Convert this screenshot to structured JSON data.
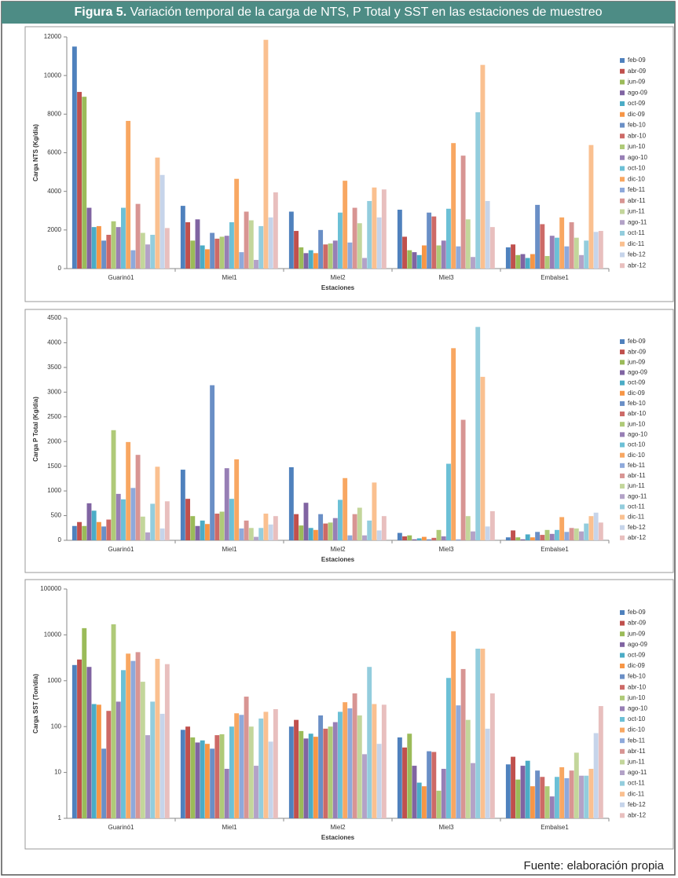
{
  "figure": {
    "label": "Figura 5.",
    "title": "Variación temporal de la carga de NTS, P Total y SST en las estaciones de muestreo"
  },
  "source": "Fuente: elaboración propia",
  "chart_data": [
    {
      "type": "bar",
      "ylabel": "Carga NTS (Kg/día)",
      "xlabel": "Estaciones",
      "legend": "right",
      "categories": [
        "Guarinó1",
        "Miel1",
        "Miel2",
        "Miel3",
        "Embalse1"
      ],
      "ylim": [
        0,
        12000
      ],
      "yticks": [
        0,
        2000,
        4000,
        6000,
        8000,
        10000,
        12000
      ],
      "series": [
        {
          "name": "feb-09",
          "color": "#4F81BD",
          "values": [
            11500,
            3250,
            2950,
            3050,
            1100
          ]
        },
        {
          "name": "abr-09",
          "color": "#C0504D",
          "values": [
            9150,
            2400,
            1950,
            1650,
            1250
          ]
        },
        {
          "name": "jun-09",
          "color": "#9BBB59",
          "values": [
            8900,
            1450,
            1100,
            950,
            700
          ]
        },
        {
          "name": "ago-09",
          "color": "#8064A2",
          "values": [
            3150,
            2550,
            800,
            850,
            750
          ]
        },
        {
          "name": "oct-09",
          "color": "#4BACC6",
          "values": [
            2150,
            1200,
            950,
            700,
            550
          ]
        },
        {
          "name": "dic-09",
          "color": "#F79646",
          "values": [
            2200,
            1000,
            800,
            1200,
            750
          ]
        },
        {
          "name": "feb-10",
          "color": "#6A8FC6",
          "values": [
            1450,
            1850,
            2000,
            2900,
            3300
          ]
        },
        {
          "name": "abr-10",
          "color": "#CD6A67",
          "values": [
            1750,
            1550,
            1250,
            2700,
            2300
          ]
        },
        {
          "name": "jun-10",
          "color": "#AFCA78",
          "values": [
            2450,
            1650,
            1300,
            1200,
            650
          ]
        },
        {
          "name": "ago-10",
          "color": "#977FB5",
          "values": [
            2150,
            1700,
            1450,
            1450,
            1700
          ]
        },
        {
          "name": "oct-10",
          "color": "#6CC0D6",
          "values": [
            3150,
            2400,
            2900,
            3100,
            1600
          ]
        },
        {
          "name": "dic-10",
          "color": "#F8A762",
          "values": [
            7650,
            4650,
            4550,
            6500,
            2650
          ]
        },
        {
          "name": "feb-11",
          "color": "#8EA9DB",
          "values": [
            950,
            850,
            1350,
            1150,
            1150
          ]
        },
        {
          "name": "abr-11",
          "color": "#D89593",
          "values": [
            3350,
            2950,
            3150,
            5850,
            2400
          ]
        },
        {
          "name": "jun-11",
          "color": "#C3D69B",
          "values": [
            1850,
            2500,
            2350,
            2550,
            1600
          ]
        },
        {
          "name": "ago-11",
          "color": "#B3A2C7",
          "values": [
            1250,
            450,
            550,
            600,
            700
          ]
        },
        {
          "name": "oct-11",
          "color": "#93CDDD",
          "values": [
            1750,
            2200,
            3500,
            8100,
            1450
          ]
        },
        {
          "name": "dic-11",
          "color": "#FAC090",
          "values": [
            5750,
            11850,
            4200,
            10550,
            6400
          ]
        },
        {
          "name": "feb-12",
          "color": "#C6D4EA",
          "values": [
            4850,
            2650,
            2650,
            3500,
            1900
          ]
        },
        {
          "name": "abr-12",
          "color": "#E8BFBE",
          "values": [
            2100,
            3950,
            4100,
            2150,
            1950
          ]
        }
      ]
    },
    {
      "type": "bar",
      "ylabel": "Carga P Total (Kg/día)",
      "xlabel": "Estaciones",
      "legend": "right",
      "categories": [
        "Guarinó1",
        "Miel1",
        "Miel2",
        "Miel3",
        "Embalse1"
      ],
      "ylim": [
        0,
        4500
      ],
      "yticks": [
        0,
        500,
        1000,
        1500,
        2000,
        2500,
        3000,
        3500,
        4000,
        4500
      ],
      "series": [
        {
          "name": "feb-09",
          "color": "#4F81BD",
          "values": [
            290,
            1430,
            1480,
            150,
            60
          ]
        },
        {
          "name": "abr-09",
          "color": "#C0504D",
          "values": [
            370,
            840,
            530,
            80,
            200
          ]
        },
        {
          "name": "jun-09",
          "color": "#9BBB59",
          "values": [
            290,
            490,
            300,
            100,
            60
          ]
        },
        {
          "name": "ago-09",
          "color": "#8064A2",
          "values": [
            750,
            290,
            760,
            20,
            20
          ]
        },
        {
          "name": "oct-09",
          "color": "#4BACC6",
          "values": [
            600,
            400,
            250,
            40,
            120
          ]
        },
        {
          "name": "dic-09",
          "color": "#F79646",
          "values": [
            370,
            330,
            210,
            70,
            60
          ]
        },
        {
          "name": "feb-10",
          "color": "#6A8FC6",
          "values": [
            280,
            3140,
            530,
            20,
            170
          ]
        },
        {
          "name": "abr-10",
          "color": "#CD6A67",
          "values": [
            420,
            540,
            340,
            50,
            110
          ]
        },
        {
          "name": "jun-10",
          "color": "#AFCA78",
          "values": [
            2230,
            580,
            360,
            210,
            210
          ]
        },
        {
          "name": "ago-10",
          "color": "#977FB5",
          "values": [
            940,
            1460,
            450,
            80,
            130
          ]
        },
        {
          "name": "oct-10",
          "color": "#6CC0D6",
          "values": [
            830,
            840,
            820,
            1550,
            210
          ]
        },
        {
          "name": "dic-10",
          "color": "#F8A762",
          "values": [
            1990,
            1640,
            1260,
            3890,
            470
          ]
        },
        {
          "name": "feb-11",
          "color": "#8EA9DB",
          "values": [
            1060,
            240,
            100,
            20,
            170
          ]
        },
        {
          "name": "abr-11",
          "color": "#D89593",
          "values": [
            1730,
            400,
            530,
            2440,
            250
          ]
        },
        {
          "name": "jun-11",
          "color": "#C3D69B",
          "values": [
            480,
            250,
            660,
            490,
            240
          ]
        },
        {
          "name": "ago-11",
          "color": "#B3A2C7",
          "values": [
            160,
            70,
            100,
            180,
            180
          ]
        },
        {
          "name": "oct-11",
          "color": "#93CDDD",
          "values": [
            740,
            250,
            400,
            4320,
            340
          ]
        },
        {
          "name": "dic-11",
          "color": "#FAC090",
          "values": [
            1490,
            540,
            1170,
            3310,
            490
          ]
        },
        {
          "name": "feb-12",
          "color": "#C6D4EA",
          "values": [
            240,
            320,
            200,
            280,
            560
          ]
        },
        {
          "name": "abr-12",
          "color": "#E8BFBE",
          "values": [
            790,
            490,
            490,
            590,
            360
          ]
        }
      ]
    },
    {
      "type": "bar",
      "ylabel": "Carga SST (Ton/día)",
      "xlabel": "Estaciones",
      "legend": "right",
      "log": true,
      "categories": [
        "Guarinó1",
        "Miel1",
        "Miel2",
        "Miel3",
        "Embalse1"
      ],
      "ylim": [
        1,
        100000
      ],
      "yticks": [
        1,
        10,
        100,
        1000,
        10000,
        100000
      ],
      "series": [
        {
          "name": "feb-09",
          "color": "#4F81BD",
          "values": [
            2200,
            85,
            100,
            58,
            15
          ]
        },
        {
          "name": "abr-09",
          "color": "#C0504D",
          "values": [
            2900,
            100,
            140,
            35,
            22
          ]
        },
        {
          "name": "jun-09",
          "color": "#9BBB59",
          "values": [
            14000,
            58,
            80,
            70,
            7
          ]
        },
        {
          "name": "ago-09",
          "color": "#8064A2",
          "values": [
            2000,
            45,
            55,
            14,
            14
          ]
        },
        {
          "name": "oct-09",
          "color": "#4BACC6",
          "values": [
            310,
            50,
            70,
            6,
            18
          ]
        },
        {
          "name": "dic-09",
          "color": "#F79646",
          "values": [
            300,
            42,
            60,
            5,
            5
          ]
        },
        {
          "name": "feb-10",
          "color": "#6A8FC6",
          "values": [
            33,
            33,
            175,
            29,
            11
          ]
        },
        {
          "name": "abr-10",
          "color": "#CD6A67",
          "values": [
            220,
            65,
            90,
            28,
            8
          ]
        },
        {
          "name": "jun-10",
          "color": "#AFCA78",
          "values": [
            17000,
            68,
            100,
            4,
            5
          ]
        },
        {
          "name": "ago-10",
          "color": "#977FB5",
          "values": [
            350,
            12,
            125,
            12,
            3
          ]
        },
        {
          "name": "oct-10",
          "color": "#6CC0D6",
          "values": [
            1700,
            100,
            210,
            1150,
            8
          ]
        },
        {
          "name": "dic-10",
          "color": "#F8A762",
          "values": [
            3900,
            195,
            340,
            12000,
            13
          ]
        },
        {
          "name": "feb-11",
          "color": "#8EA9DB",
          "values": [
            2700,
            180,
            250,
            290,
            7.5
          ]
        },
        {
          "name": "abr-11",
          "color": "#D89593",
          "values": [
            4200,
            450,
            530,
            1800,
            11
          ]
        },
        {
          "name": "jun-11",
          "color": "#C3D69B",
          "values": [
            950,
            100,
            175,
            140,
            27
          ]
        },
        {
          "name": "ago-11",
          "color": "#B3A2C7",
          "values": [
            65,
            14,
            25,
            16,
            8.5
          ]
        },
        {
          "name": "oct-11",
          "color": "#93CDDD",
          "values": [
            350,
            150,
            2000,
            5000,
            8.5
          ]
        },
        {
          "name": "dic-11",
          "color": "#FAC090",
          "values": [
            3000,
            210,
            310,
            5000,
            12
          ]
        },
        {
          "name": "feb-12",
          "color": "#C6D4EA",
          "values": [
            190,
            47,
            42,
            90,
            72
          ]
        },
        {
          "name": "abr-12",
          "color": "#E8BFBE",
          "values": [
            2300,
            240,
            300,
            530,
            280
          ]
        }
      ]
    }
  ]
}
